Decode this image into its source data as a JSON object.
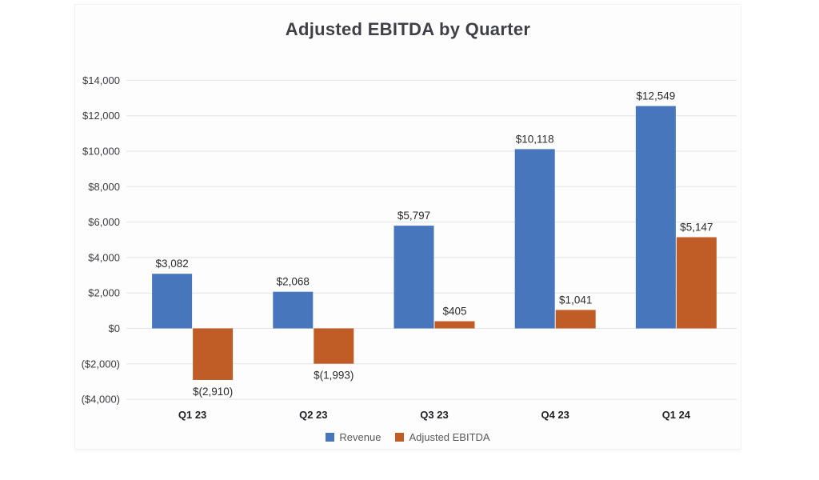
{
  "chart_data": {
    "type": "bar",
    "title": "Adjusted EBITDA by Quarter",
    "categories": [
      "Q1 23",
      "Q2 23",
      "Q3 23",
      "Q4 23",
      "Q1 24"
    ],
    "series": [
      {
        "name": "Revenue",
        "color": "#4876BD",
        "values": [
          3082,
          2068,
          5797,
          10118,
          12549
        ],
        "labels": [
          "$3,082",
          "$2,068",
          "$5,797",
          "$10,118",
          "$12,549"
        ]
      },
      {
        "name": "Adjusted EBITDA",
        "color": "#C05C26",
        "values": [
          -2910,
          -1993,
          405,
          1041,
          5147
        ],
        "labels": [
          "$(2,910)",
          "$(1,993)",
          "$405",
          "$1,041",
          "$5,147"
        ]
      }
    ],
    "y_axis": {
      "min": -4000,
      "max": 14000,
      "step": 2000,
      "tick_labels": [
        "($4,000)",
        "($2,000)",
        "$0",
        "$2,000",
        "$4,000",
        "$6,000",
        "$8,000",
        "$10,000",
        "$12,000",
        "$14,000"
      ]
    },
    "xlabel": "",
    "ylabel": "",
    "grid": true,
    "legend": {
      "position": "bottom",
      "items": [
        "Revenue",
        "Adjusted EBITDA"
      ]
    },
    "colors": {
      "revenue": "#4876BD",
      "adjusted_ebitda": "#C05C26",
      "gridline": "#E3E3E8",
      "title_text": "#3F4045",
      "axis_text": "#3C3C40",
      "x_label_text": "#1F1F23",
      "data_label_text": "#2B2B2B",
      "legend_text": "#595959"
    }
  }
}
